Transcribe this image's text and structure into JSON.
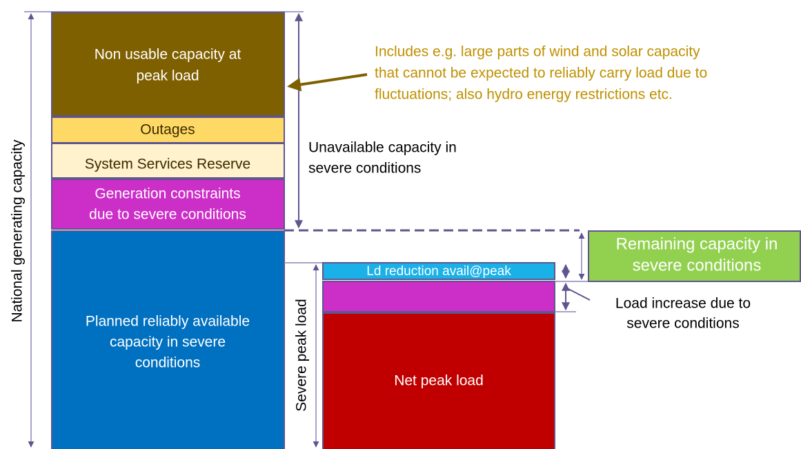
{
  "diagram": {
    "axis_label": "National generating capacity",
    "blocks": {
      "non_usable": [
        "Non usable capacity at",
        "peak load"
      ],
      "outages": "Outages",
      "system_services_reserve": "System Services Reserve",
      "generation_constraints": [
        "Generation constraints",
        "due to severe conditions"
      ],
      "planned_available": [
        "Planned reliably available",
        "capacity in severe",
        "conditions"
      ],
      "load_reduction": "Ld reduction avail@peak",
      "net_peak_load": "Net  peak load",
      "remaining_capacity": [
        "Remaining capacity in",
        "severe conditions"
      ]
    },
    "annotations": {
      "includes": [
        "Includes e.g. large parts of wind and solar capacity",
        "that cannot be expected to reliably carry load due to",
        "fluctuations; also hydro energy restrictions etc."
      ],
      "unavailable": [
        "Unavailable capacity in",
        "severe conditions"
      ],
      "severe_peak_load": "Severe peak load",
      "load_increase": [
        "Load increase due to",
        "severe conditions"
      ]
    }
  }
}
